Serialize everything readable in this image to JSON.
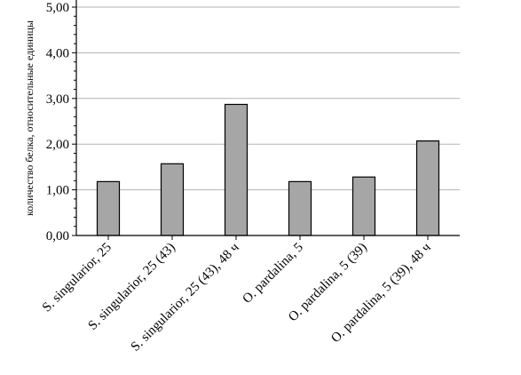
{
  "chart_data": {
    "type": "bar",
    "title": "",
    "xlabel": "",
    "ylabel": "количество белка, относительные единицы",
    "categories": [
      "S. singularior, 25",
      "S. singularior, 25 (43)",
      "S. singularior, 25 (43), 48 ч",
      "O. pardalina, 5",
      "O. pardalina, 5 (39)",
      "O. pardalina, 5 (39), 48 ч"
    ],
    "values": [
      1.18,
      1.57,
      2.87,
      1.18,
      1.28,
      2.07
    ],
    "ylim": [
      0,
      5
    ],
    "yticks": [
      "0,00",
      "1,00",
      "2,00",
      "3,00",
      "4,00",
      "5,00"
    ],
    "grid": true,
    "bar_color": "#a6a6a6",
    "bar_stroke": "#000000",
    "grid_color": "#b3b3b3"
  }
}
